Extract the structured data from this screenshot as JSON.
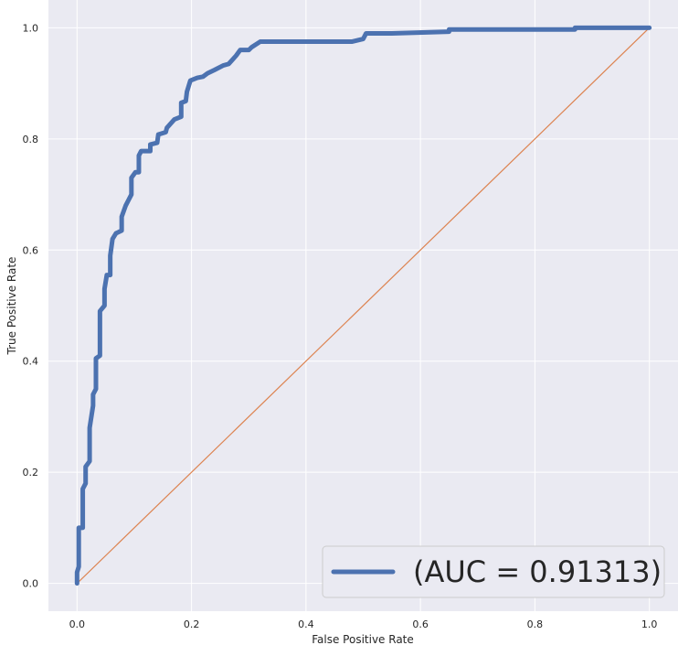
{
  "chart_data": {
    "type": "line",
    "xlabel": "False Positive Rate",
    "ylabel": "True Positive Rate",
    "xlim": [
      -0.05,
      1.05
    ],
    "ylim": [
      -0.05,
      1.05
    ],
    "x_ticks": [
      "0.0",
      "0.2",
      "0.4",
      "0.6",
      "0.8",
      "1.0"
    ],
    "y_ticks": [
      "0.0",
      "0.2",
      "0.4",
      "0.6",
      "0.8",
      "1.0"
    ],
    "grid": true,
    "legend_position": "lower-right",
    "background_color": "#eaeaf2",
    "series": [
      {
        "name": "(AUC = 0.91313)",
        "color": "#4c72b0",
        "points": [
          [
            0.0,
            0.0
          ],
          [
            0.0,
            0.02
          ],
          [
            0.003,
            0.03
          ],
          [
            0.003,
            0.1
          ],
          [
            0.01,
            0.1
          ],
          [
            0.01,
            0.17
          ],
          [
            0.015,
            0.18
          ],
          [
            0.015,
            0.21
          ],
          [
            0.022,
            0.22
          ],
          [
            0.022,
            0.28
          ],
          [
            0.028,
            0.32
          ],
          [
            0.028,
            0.34
          ],
          [
            0.033,
            0.35
          ],
          [
            0.033,
            0.405
          ],
          [
            0.04,
            0.41
          ],
          [
            0.04,
            0.49
          ],
          [
            0.048,
            0.5
          ],
          [
            0.048,
            0.53
          ],
          [
            0.052,
            0.555
          ],
          [
            0.058,
            0.555
          ],
          [
            0.058,
            0.59
          ],
          [
            0.062,
            0.62
          ],
          [
            0.068,
            0.63
          ],
          [
            0.078,
            0.635
          ],
          [
            0.078,
            0.66
          ],
          [
            0.085,
            0.68
          ],
          [
            0.09,
            0.69
          ],
          [
            0.095,
            0.7
          ],
          [
            0.095,
            0.73
          ],
          [
            0.102,
            0.74
          ],
          [
            0.108,
            0.74
          ],
          [
            0.108,
            0.77
          ],
          [
            0.112,
            0.778
          ],
          [
            0.128,
            0.778
          ],
          [
            0.128,
            0.79
          ],
          [
            0.14,
            0.793
          ],
          [
            0.142,
            0.808
          ],
          [
            0.155,
            0.812
          ],
          [
            0.157,
            0.82
          ],
          [
            0.17,
            0.835
          ],
          [
            0.182,
            0.84
          ],
          [
            0.182,
            0.865
          ],
          [
            0.19,
            0.868
          ],
          [
            0.192,
            0.885
          ],
          [
            0.198,
            0.905
          ],
          [
            0.21,
            0.91
          ],
          [
            0.22,
            0.912
          ],
          [
            0.228,
            0.918
          ],
          [
            0.24,
            0.924
          ],
          [
            0.255,
            0.932
          ],
          [
            0.265,
            0.935
          ],
          [
            0.278,
            0.95
          ],
          [
            0.285,
            0.96
          ],
          [
            0.3,
            0.96
          ],
          [
            0.305,
            0.965
          ],
          [
            0.32,
            0.975
          ],
          [
            0.48,
            0.975
          ],
          [
            0.5,
            0.98
          ],
          [
            0.505,
            0.99
          ],
          [
            0.55,
            0.99
          ],
          [
            0.65,
            0.993
          ],
          [
            0.65,
            0.997
          ],
          [
            0.87,
            0.997
          ],
          [
            0.87,
            1.0
          ],
          [
            1.0,
            1.0
          ]
        ]
      },
      {
        "name": "",
        "color": "#dd8452",
        "points": [
          [
            0.0,
            0.0
          ],
          [
            1.0,
            1.0
          ]
        ]
      }
    ]
  }
}
